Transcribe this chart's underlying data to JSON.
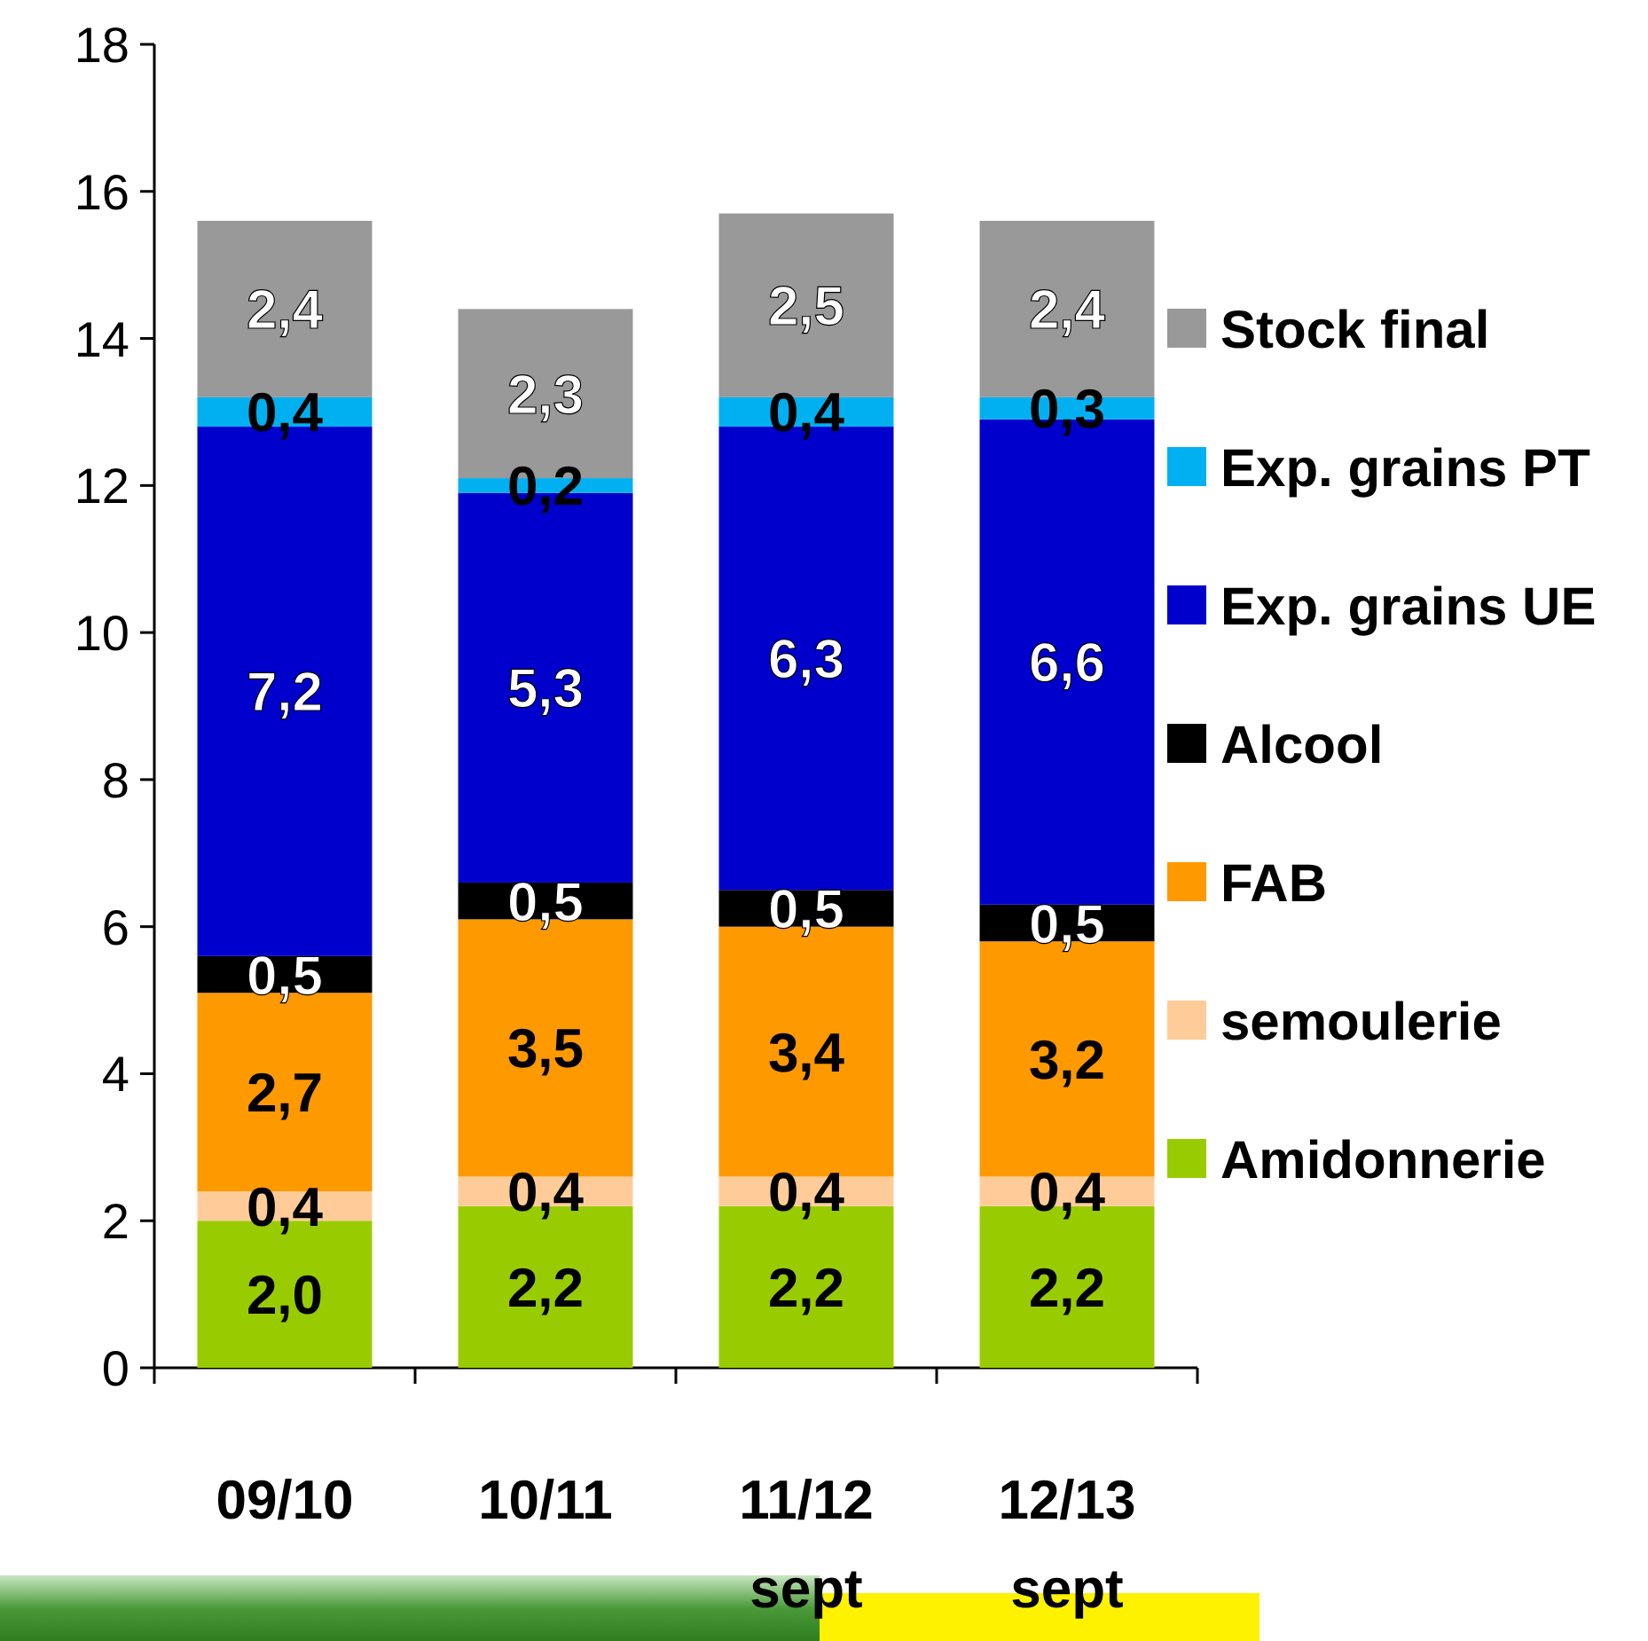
{
  "chart_data": {
    "type": "bar",
    "stacked": true,
    "categories": [
      "09/10",
      "10/11",
      "11/12 sept",
      "12/13 sept"
    ],
    "series": [
      {
        "name": "Amidonnerie",
        "color": "#99cc00",
        "values": [
          2.0,
          2.2,
          2.2,
          2.2
        ],
        "value_labels": [
          "2,0",
          "2,2",
          "2,2",
          "2,2"
        ]
      },
      {
        "name": "semoulerie",
        "color": "#ffcc99",
        "values": [
          0.4,
          0.4,
          0.4,
          0.4
        ],
        "value_labels": [
          "0,4",
          "0,4",
          "0,4",
          "0,4"
        ]
      },
      {
        "name": "FAB",
        "color": "#ff9900",
        "values": [
          2.7,
          3.5,
          3.4,
          3.2
        ],
        "value_labels": [
          "2,7",
          "3,5",
          "3,4",
          "3,2"
        ]
      },
      {
        "name": "Alcool",
        "color": "#000000",
        "values": [
          0.5,
          0.5,
          0.5,
          0.5
        ],
        "value_labels": [
          "0,5",
          "0,5",
          "0,5",
          "0,5"
        ]
      },
      {
        "name": "Exp. grains UE",
        "color": "#0000cc",
        "values": [
          7.2,
          5.3,
          6.3,
          6.6
        ],
        "value_labels": [
          "7,2",
          "5,3",
          "6,3",
          "6,6"
        ]
      },
      {
        "name": "Exp. grains PT",
        "color": "#00b0f0",
        "values": [
          0.4,
          0.2,
          0.4,
          0.3
        ],
        "value_labels": [
          "0,4",
          "0,2",
          "0,4",
          "0,3"
        ]
      },
      {
        "name": "Stock final",
        "color": "#999999",
        "values": [
          2.4,
          2.3,
          2.5,
          2.4
        ],
        "value_labels": [
          "2,4",
          "2,3",
          "2,5",
          "2,4"
        ]
      }
    ],
    "ylim": [
      0,
      18
    ],
    "yticks": [
      0,
      2,
      4,
      6,
      8,
      10,
      12,
      14,
      16,
      18
    ],
    "grid": false,
    "legend": "right"
  }
}
